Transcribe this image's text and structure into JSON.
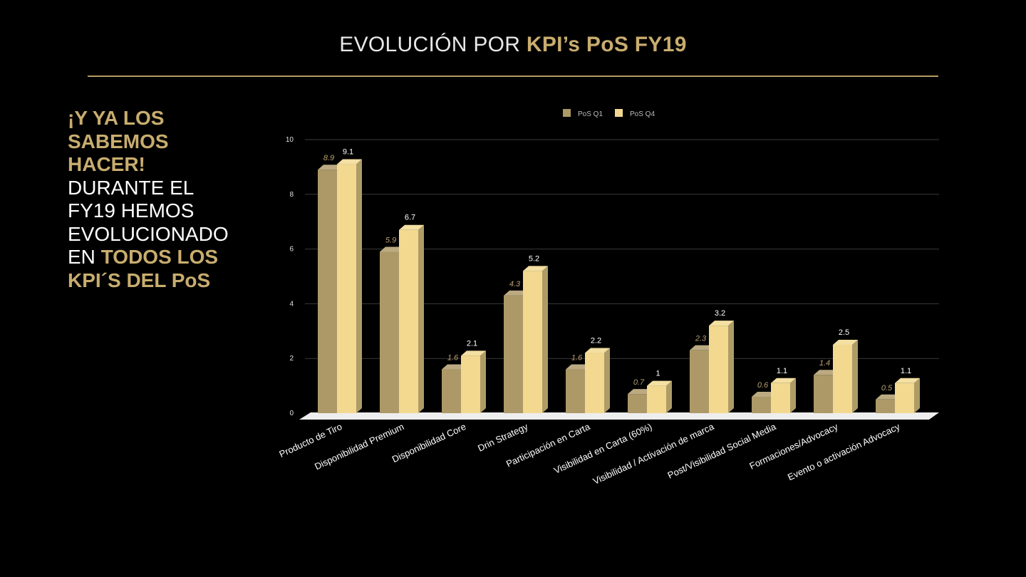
{
  "title": {
    "light": "EVOLUCIÓN POR ",
    "accent": "KPI’s PoS FY19"
  },
  "sidebar": {
    "lines": [
      {
        "text": "¡Y YA LOS",
        "style": "bold"
      },
      {
        "text": "SABEMOS",
        "style": "bold"
      },
      {
        "text": "HACER!",
        "style": "bold"
      },
      {
        "text": "DURANTE EL",
        "style": "light"
      },
      {
        "text": "FY19 HEMOS",
        "style": "light"
      },
      {
        "text": "EVOLUCIONADO",
        "style": "light"
      }
    ],
    "line7_light": "EN ",
    "line7_bold": "TODOS LOS",
    "line8_bold": "KPI´S DEL PoS"
  },
  "colors": {
    "accent": "#c8ad6e",
    "q1": "#ad9967",
    "q4": "#f2d98f",
    "background": "#000000"
  },
  "chart_data": {
    "type": "bar",
    "categories": [
      "Producto de Tiro",
      "Disponibilidad Premium",
      "Disponibilidad Core",
      "Drin Strategy",
      "Participación en Carta",
      "Visibilidad en Carta (60%)",
      "Visibilidad / Activación de marca",
      "Post/Visibilidad Social Media",
      "Formaciones/Advocacy",
      "Evento o activación Advocacy"
    ],
    "series": [
      {
        "name": "PoS Q1",
        "values": [
          8.9,
          5.9,
          1.6,
          4.3,
          1.6,
          0.7,
          2.3,
          0.6,
          1.4,
          0.5
        ]
      },
      {
        "name": "PoS Q4",
        "values": [
          9.1,
          6.7,
          2.1,
          5.2,
          2.2,
          1,
          3.2,
          1.1,
          2.5,
          1.1
        ]
      }
    ],
    "ylim": [
      0,
      10
    ],
    "yticks": [
      "0",
      "2",
      "4",
      "6",
      "8",
      "10"
    ],
    "grid": true,
    "legend": "top-center",
    "style": "3d-bar"
  }
}
